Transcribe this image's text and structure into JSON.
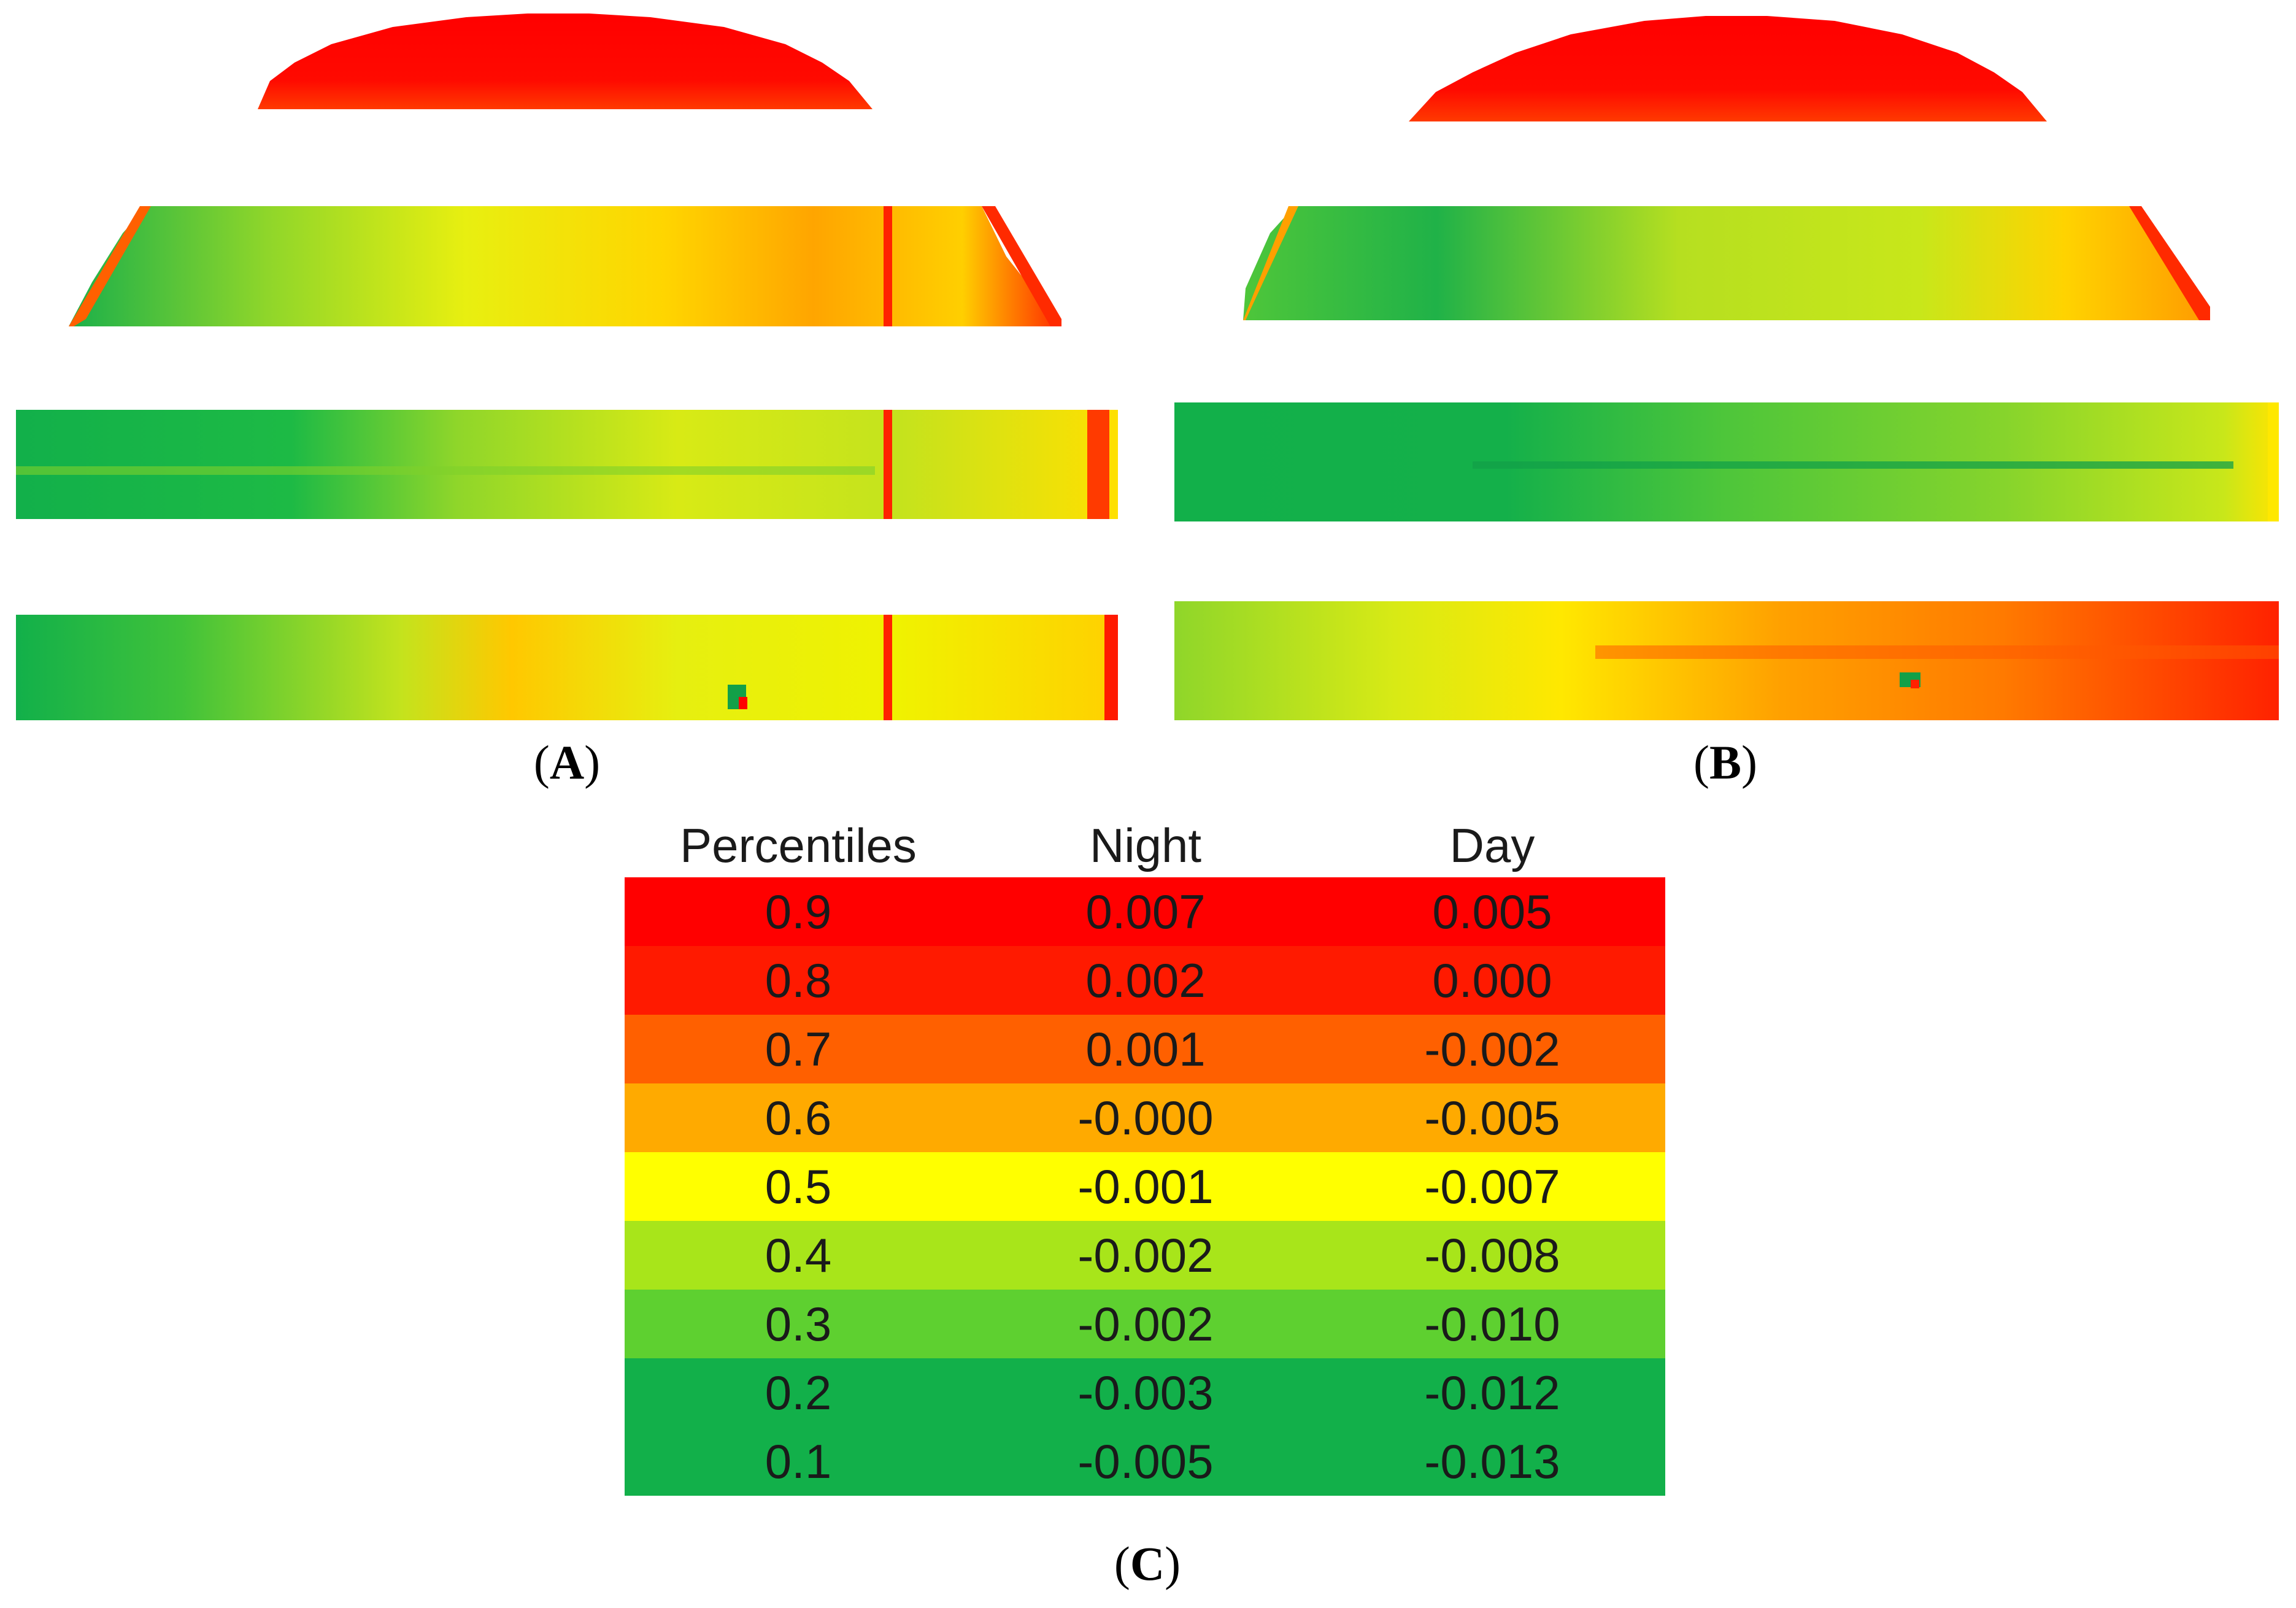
{
  "figure": {
    "panels": [
      {
        "id": "A",
        "label": "A"
      },
      {
        "id": "B",
        "label": "B"
      },
      {
        "id": "C",
        "label": "C"
      }
    ]
  },
  "legend": {
    "headers": {
      "percentiles": "Percentiles",
      "night": "Night",
      "day": "Day"
    },
    "rows": [
      {
        "percentile": "0.9",
        "night": "0.007",
        "day": "0.005",
        "color": "#ff0000"
      },
      {
        "percentile": "0.8",
        "night": "0.002",
        "day": "0.000",
        "color": "#ff1a00"
      },
      {
        "percentile": "0.7",
        "night": "0.001",
        "day": "-0.002",
        "color": "#ff6000"
      },
      {
        "percentile": "0.6",
        "night": "-0.000",
        "day": "-0.005",
        "color": "#ffaa00"
      },
      {
        "percentile": "0.5",
        "night": "-0.001",
        "day": "-0.007",
        "color": "#ffff00"
      },
      {
        "percentile": "0.4",
        "night": "-0.002",
        "day": "-0.008",
        "color": "#a8e51a"
      },
      {
        "percentile": "0.3",
        "night": "-0.002",
        "day": "-0.010",
        "color": "#5ed030"
      },
      {
        "percentile": "0.2",
        "night": "-0.003",
        "day": "-0.012",
        "color": "#12b04a"
      },
      {
        "percentile": "0.1",
        "night": "-0.005",
        "day": "-0.013",
        "color": "#12b04a"
      }
    ]
  }
}
